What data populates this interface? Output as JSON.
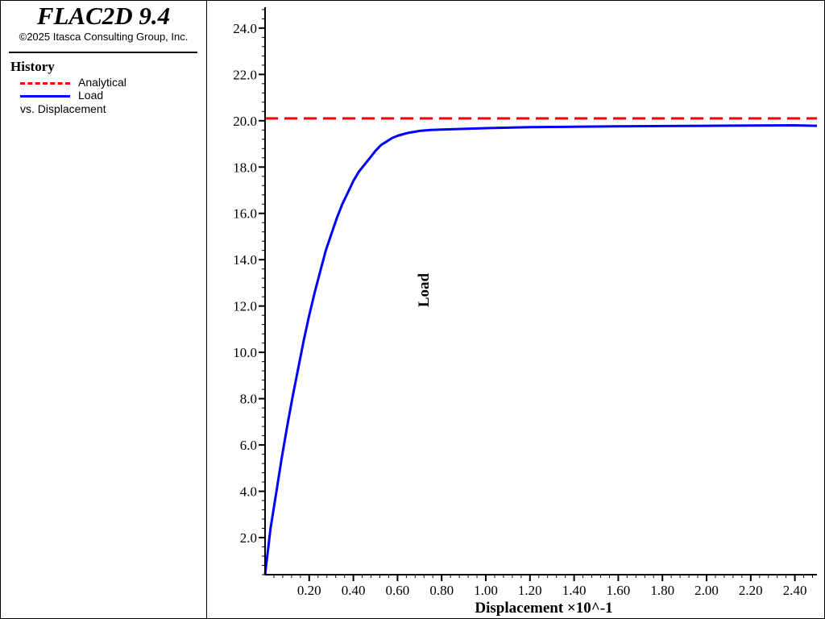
{
  "header": {
    "app_title": "FLAC2D 9.4",
    "copyright": "©2025 Itasca Consulting Group, Inc."
  },
  "legend": {
    "heading": "History",
    "items": [
      {
        "label": "Analytical",
        "color": "#ff0000",
        "style": "dashed"
      },
      {
        "label": "Load",
        "color": "#0000ff",
        "style": "solid"
      }
    ],
    "vs_label": "vs. Displacement"
  },
  "chart_data": {
    "type": "line",
    "xlabel": "Displacement ×10^-1",
    "ylabel": "Load",
    "xlim": [
      0,
      2.5
    ],
    "ylim": [
      0.4,
      24.9
    ],
    "x_ticks": [
      0.2,
      0.4,
      0.6,
      0.8,
      1.0,
      1.2,
      1.4,
      1.6,
      1.8,
      2.0,
      2.2,
      2.4
    ],
    "x_tick_labels": [
      "0.20",
      "0.40",
      "0.60",
      "0.80",
      "1.00",
      "1.20",
      "1.40",
      "1.60",
      "1.80",
      "2.00",
      "2.20",
      "2.40"
    ],
    "y_ticks": [
      2,
      4,
      6,
      8,
      10,
      12,
      14,
      16,
      18,
      20,
      22,
      24
    ],
    "y_tick_labels": [
      "2.0",
      "4.0",
      "6.0",
      "8.0",
      "10.0",
      "12.0",
      "14.0",
      "16.0",
      "18.0",
      "20.0",
      "22.0",
      "24.0"
    ],
    "grid": false,
    "series": [
      {
        "name": "Analytical",
        "color": "#ff0000",
        "style": "dashed",
        "x": [
          0.0,
          2.5
        ],
        "y": [
          20.1,
          20.1
        ]
      },
      {
        "name": "Load",
        "color": "#0000ff",
        "style": "solid",
        "x": [
          0.0,
          0.025,
          0.05,
          0.075,
          0.1,
          0.125,
          0.15,
          0.175,
          0.2,
          0.225,
          0.25,
          0.275,
          0.3,
          0.325,
          0.35,
          0.375,
          0.4,
          0.425,
          0.45,
          0.475,
          0.5,
          0.525,
          0.55,
          0.575,
          0.6,
          0.625,
          0.65,
          0.675,
          0.7,
          0.75,
          0.8,
          0.9,
          1.0,
          1.1,
          1.2,
          1.4,
          1.6,
          1.8,
          2.0,
          2.2,
          2.4,
          2.5
        ],
        "y": [
          0.4,
          2.4,
          3.9,
          5.4,
          6.8,
          8.1,
          9.3,
          10.5,
          11.6,
          12.6,
          13.5,
          14.4,
          15.1,
          15.8,
          16.4,
          16.9,
          17.4,
          17.8,
          18.1,
          18.4,
          18.7,
          18.95,
          19.1,
          19.25,
          19.35,
          19.42,
          19.48,
          19.52,
          19.56,
          19.6,
          19.62,
          19.65,
          19.68,
          19.7,
          19.72,
          19.74,
          19.76,
          19.77,
          19.78,
          19.79,
          19.8,
          19.78
        ]
      }
    ]
  }
}
